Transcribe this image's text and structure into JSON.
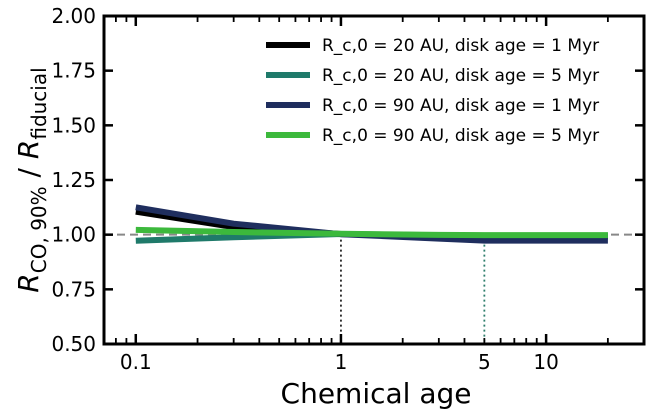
{
  "chart_data": {
    "type": "line",
    "xscale": "log",
    "xlabel": "Chemical age",
    "ylabel": "R_CO, 90% / R_fiducial",
    "xlim": [
      0.07,
      30
    ],
    "ylim": [
      0.5,
      2.0
    ],
    "x_ticks": [
      {
        "value": 0.1,
        "label": "0.1"
      },
      {
        "value": 1,
        "label": "1"
      },
      {
        "value": 5,
        "label": "5"
      },
      {
        "value": 10,
        "label": "10"
      }
    ],
    "y_ticks": [
      {
        "value": 0.5,
        "label": "0.50"
      },
      {
        "value": 0.75,
        "label": "0.75"
      },
      {
        "value": 1.0,
        "label": "1.00"
      },
      {
        "value": 1.25,
        "label": "1.25"
      },
      {
        "value": 1.5,
        "label": "1.50"
      },
      {
        "value": 1.75,
        "label": "1.75"
      },
      {
        "value": 2.0,
        "label": "2.00"
      }
    ],
    "reference_line": {
      "y": 1.0,
      "color": "#888888",
      "style": "dashed"
    },
    "vertical_markers": [
      {
        "x": 1,
        "color": "#222222",
        "style": "dotted"
      },
      {
        "x": 5,
        "color": "#2e7d6b",
        "style": "dotted"
      }
    ],
    "legend_position": "top-right",
    "series": [
      {
        "name": "R_c,0 = 20 AU, disk age = 1 Myr",
        "color": "#000000",
        "x": [
          0.1,
          0.3,
          1,
          3,
          5,
          10,
          20
        ],
        "y": [
          1.105,
          1.035,
          1.003,
          0.994,
          0.992,
          0.992,
          0.992
        ]
      },
      {
        "name": "R_c,0 = 20 AU, disk age = 5 Myr",
        "color": "#1f7a6a",
        "x": [
          0.1,
          0.3,
          1,
          3,
          5,
          10,
          20
        ],
        "y": [
          0.972,
          0.988,
          1.003,
          0.997,
          0.996,
          0.996,
          0.996
        ]
      },
      {
        "name": "R_c,0 = 90 AU, disk age = 1 Myr",
        "color": "#1f2e5e",
        "x": [
          0.1,
          0.3,
          1,
          3,
          5,
          10,
          20
        ],
        "y": [
          1.125,
          1.05,
          1.002,
          0.982,
          0.973,
          0.973,
          0.973
        ]
      },
      {
        "name": "R_c,0 = 90 AU, disk age = 5 Myr",
        "color": "#3cb93c",
        "x": [
          0.1,
          0.3,
          1,
          3,
          5,
          10,
          20
        ],
        "y": [
          1.022,
          1.012,
          1.004,
          0.999,
          0.998,
          0.998,
          0.998
        ]
      }
    ]
  }
}
